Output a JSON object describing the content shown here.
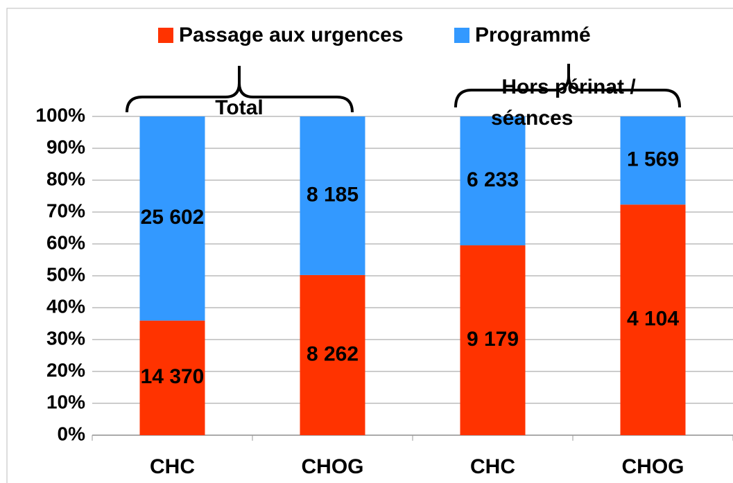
{
  "chart_data": {
    "type": "bar",
    "stacking": "percent",
    "categories": [
      "CHC",
      "CHOG",
      "CHC",
      "CHOG"
    ],
    "series": [
      {
        "name": "Passage aux urgences",
        "color": "#ff3300",
        "values": [
          14370,
          8262,
          9179,
          4104
        ],
        "value_labels": [
          "14 370",
          "8 262",
          "9 179",
          "4 104"
        ]
      },
      {
        "name": "Programmé",
        "color": "#3399ff",
        "values": [
          25602,
          8185,
          6233,
          1569
        ],
        "value_labels": [
          "25 602",
          "8 185",
          "6 233",
          "1 569"
        ]
      }
    ],
    "ylim": [
      0,
      100
    ],
    "yticks": [
      {
        "value": 0,
        "label": "0%"
      },
      {
        "value": 10,
        "label": "10%"
      },
      {
        "value": 20,
        "label": "20%"
      },
      {
        "value": 30,
        "label": "30%"
      },
      {
        "value": 40,
        "label": "40%"
      },
      {
        "value": 50,
        "label": "50%"
      },
      {
        "value": 60,
        "label": "60%"
      },
      {
        "value": 70,
        "label": "70%"
      },
      {
        "value": 80,
        "label": "80%"
      },
      {
        "value": 90,
        "label": "90%"
      },
      {
        "value": 100,
        "label": "100%"
      }
    ],
    "grid": true,
    "legend": "top",
    "annotations": [
      {
        "lines": [
          "Total"
        ]
      },
      {
        "lines": [
          "Hors périnat /",
          "séances"
        ]
      }
    ]
  }
}
